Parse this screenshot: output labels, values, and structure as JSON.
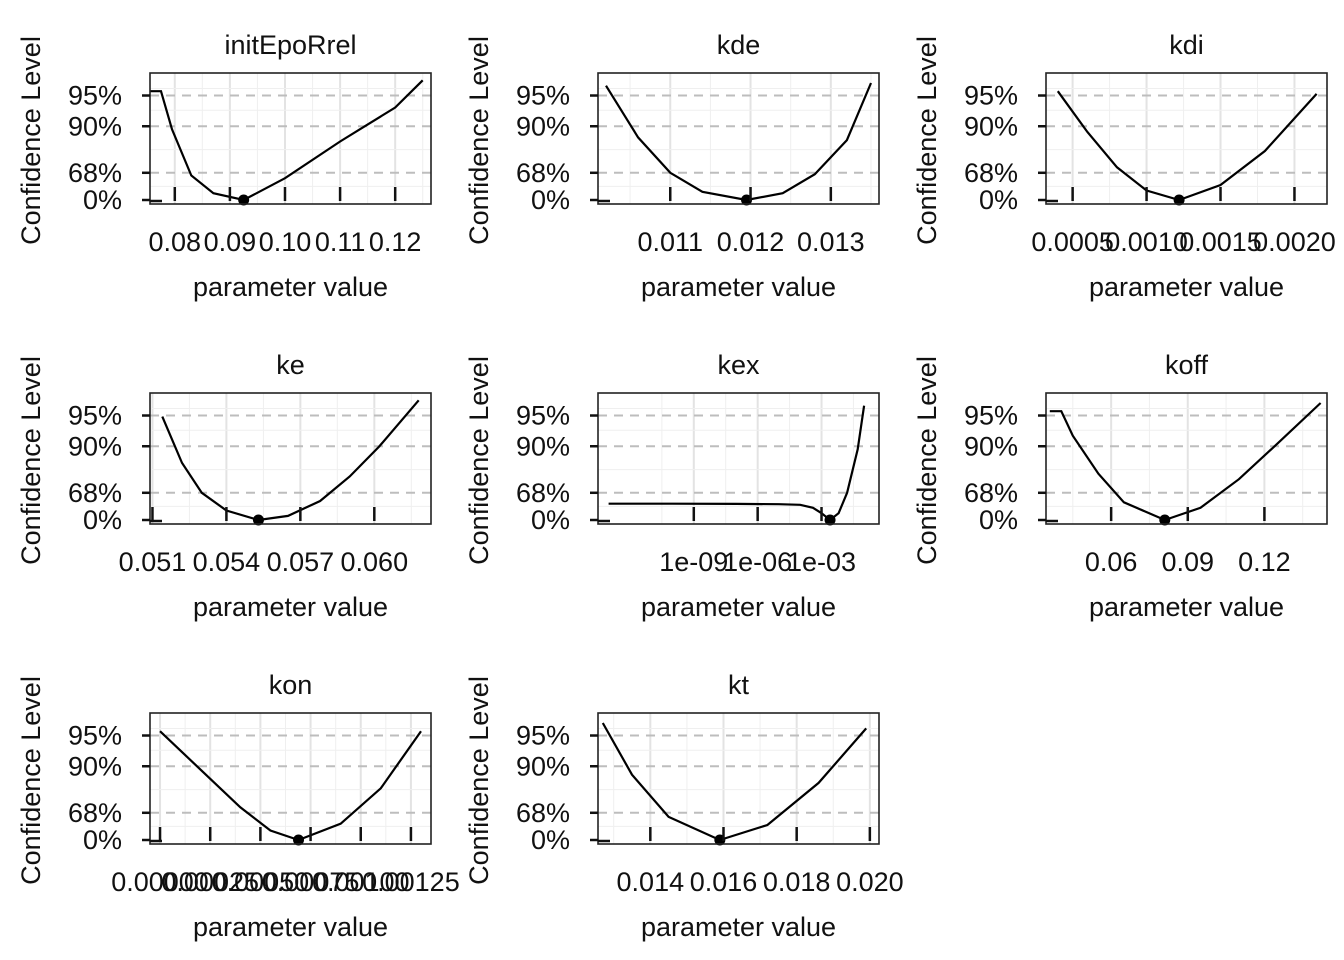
{
  "figure": {
    "y_axis_label": "Confidence Level",
    "x_axis_label": "parameter value",
    "y_tick_labels": [
      "0%",
      "68%",
      "90%",
      "95%"
    ]
  },
  "chart_data": [
    {
      "type": "line",
      "title": "initEpoRrel",
      "xlabel": "parameter value",
      "ylabel": "Confidence Level",
      "xlim": [
        0.0755,
        0.1265
      ],
      "x_ticks": [
        0.08,
        0.09,
        0.1,
        0.11,
        0.12
      ],
      "x_tick_labels": [
        "0.08",
        "0.09",
        "0.10",
        "0.11",
        "0.12"
      ],
      "y_levels": [
        "0%",
        "68%",
        "90%",
        "95%"
      ],
      "optimum": {
        "x": 0.0925,
        "y": 0
      },
      "x": [
        0.0755,
        0.0775,
        0.0795,
        0.083,
        0.087,
        0.0925,
        0.1,
        0.11,
        0.12,
        0.125
      ],
      "y": [
        4.0,
        4.0,
        2.6,
        0.9,
        0.25,
        0.0,
        0.8,
        2.15,
        3.4,
        4.4
      ]
    },
    {
      "type": "line",
      "title": "kde",
      "xlabel": "parameter value",
      "ylabel": "Confidence Level",
      "xlim": [
        0.0101,
        0.0136
      ],
      "x_ticks": [
        0.011,
        0.012,
        0.013
      ],
      "x_tick_labels": [
        "0.011",
        "0.012",
        "0.013"
      ],
      "y_levels": [
        "0%",
        "68%",
        "90%",
        "95%"
      ],
      "optimum": {
        "x": 0.01195,
        "y": 0
      },
      "x": [
        0.0102,
        0.0106,
        0.011,
        0.0114,
        0.01195,
        0.0124,
        0.0128,
        0.0132,
        0.0135
      ],
      "y": [
        4.2,
        2.3,
        1.0,
        0.3,
        0.0,
        0.25,
        0.95,
        2.2,
        4.3
      ]
    },
    {
      "type": "line",
      "title": "kdi",
      "xlabel": "parameter value",
      "ylabel": "Confidence Level",
      "xlim": [
        0.00032,
        0.00222
      ],
      "x_ticks": [
        0.0005,
        0.001,
        0.0015,
        0.002
      ],
      "x_tick_labels": [
        "0.0005",
        "0.0010",
        "0.0015",
        "0.0020"
      ],
      "y_levels": [
        "0%",
        "68%",
        "90%",
        "95%"
      ],
      "optimum": {
        "x": 0.00122,
        "y": 0
      },
      "x": [
        0.0004,
        0.0006,
        0.0008,
        0.001,
        0.00122,
        0.0015,
        0.0018,
        0.00215
      ],
      "y": [
        4.0,
        2.5,
        1.2,
        0.35,
        0.0,
        0.55,
        1.8,
        3.9
      ]
    },
    {
      "type": "line",
      "title": "ke",
      "xlabel": "parameter value",
      "ylabel": "Confidence Level",
      "xlim": [
        0.0509,
        0.0623
      ],
      "x_ticks": [
        0.051,
        0.054,
        0.057,
        0.06
      ],
      "x_tick_labels": [
        "0.051",
        "0.054",
        "0.057",
        "0.060"
      ],
      "y_levels": [
        "0%",
        "68%",
        "90%",
        "95%"
      ],
      "optimum": {
        "x": 0.0553,
        "y": 0
      },
      "x": [
        0.0514,
        0.0522,
        0.053,
        0.054,
        0.0553,
        0.0565,
        0.0578,
        0.059,
        0.0602,
        0.0618
      ],
      "y": [
        3.8,
        2.1,
        1.0,
        0.35,
        0.0,
        0.15,
        0.7,
        1.6,
        2.7,
        4.4
      ]
    },
    {
      "type": "line",
      "title": "kex",
      "xlabel": "parameter value",
      "ylabel": "Confidence Level",
      "xlim": [
        -13.5,
        -0.3
      ],
      "x_ticks": [
        -9,
        -6,
        -3
      ],
      "x_tick_labels": [
        "1e-09",
        "1e-06",
        "1e-03"
      ],
      "y_levels": [
        "0%",
        "68%",
        "90%",
        "95%"
      ],
      "optimum": {
        "x": -2.6,
        "y": 0
      },
      "x": [
        -13,
        -10,
        -7,
        -5,
        -4,
        -3.4,
        -3.0,
        -2.6,
        -2.2,
        -1.8,
        -1.3,
        -1.0
      ],
      "y": [
        0.6,
        0.6,
        0.59,
        0.58,
        0.56,
        0.45,
        0.25,
        0.0,
        0.25,
        1.0,
        2.6,
        4.2
      ]
    },
    {
      "type": "line",
      "title": "koff",
      "xlabel": "parameter value",
      "ylabel": "Confidence Level",
      "xlim": [
        0.0345,
        0.1445
      ],
      "x_ticks": [
        0.06,
        0.09,
        0.12
      ],
      "x_tick_labels": [
        "0.06",
        "0.09",
        "0.12"
      ],
      "y_levels": [
        "0%",
        "68%",
        "90%",
        "95%"
      ],
      "optimum": {
        "x": 0.081,
        "y": 0
      },
      "x": [
        0.036,
        0.0405,
        0.045,
        0.055,
        0.065,
        0.081,
        0.095,
        0.11,
        0.125,
        0.142
      ],
      "y": [
        4.0,
        4.0,
        3.1,
        1.7,
        0.65,
        0.0,
        0.45,
        1.5,
        2.8,
        4.3
      ]
    },
    {
      "type": "line",
      "title": "kon",
      "xlabel": "parameter value",
      "ylabel": "Confidence Level",
      "xlim": [
        -5e-05,
        0.00135
      ],
      "x_ticks": [
        0,
        0.00025,
        0.0005,
        0.00075,
        0.001,
        0.00125
      ],
      "x_tick_labels": [
        "0.00000",
        "0.00025",
        "0.00050",
        "0.00075",
        "0.00100",
        "0.00125"
      ],
      "y_levels": [
        "0%",
        "68%",
        "90%",
        "95%"
      ],
      "optimum": {
        "x": 0.00069,
        "y": 0
      },
      "x": [
        0.0,
        0.0002,
        0.0004,
        0.00055,
        0.00069,
        0.0009,
        0.0011,
        0.0013
      ],
      "y": [
        4.0,
        2.6,
        1.2,
        0.35,
        0.0,
        0.6,
        1.9,
        4.0
      ]
    },
    {
      "type": "line",
      "title": "kt",
      "xlabel": "parameter value",
      "ylabel": "Confidence Level",
      "xlim": [
        0.01257,
        0.02025
      ],
      "x_ticks": [
        0.014,
        0.016,
        0.018,
        0.02
      ],
      "x_tick_labels": [
        "0.014",
        "0.016",
        "0.018",
        "0.020"
      ],
      "y_levels": [
        "0%",
        "68%",
        "90%",
        "95%"
      ],
      "optimum": {
        "x": 0.0159,
        "y": 0
      },
      "x": [
        0.0127,
        0.0135,
        0.0145,
        0.0159,
        0.0172,
        0.0186,
        0.0199
      ],
      "y": [
        4.3,
        2.4,
        0.85,
        0.0,
        0.55,
        2.1,
        4.1
      ]
    }
  ]
}
